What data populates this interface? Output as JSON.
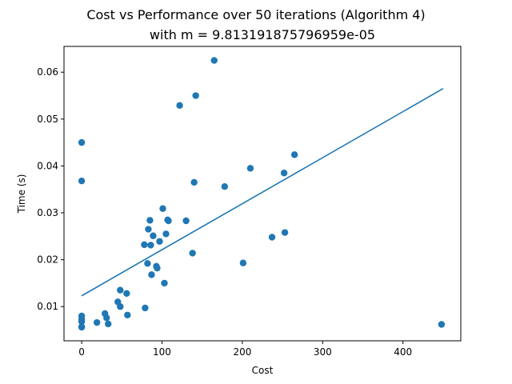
{
  "chart_data": {
    "type": "scatter",
    "title": "Cost vs Performance over 50 iterations (Algorithm 4)",
    "subtitle": "with m = 9.813191875796959e-05",
    "xlabel": "Cost",
    "ylabel": "Time (s)",
    "xlim": [
      -22,
      472
    ],
    "ylim": [
      0.0027,
      0.0655
    ],
    "xticks": [
      0,
      100,
      200,
      300,
      400
    ],
    "xtick_labels": [
      "0",
      "100",
      "200",
      "300",
      "400"
    ],
    "yticks": [
      0.01,
      0.02,
      0.03,
      0.04,
      0.05,
      0.06
    ],
    "ytick_labels": [
      "0.01",
      "0.02",
      "0.03",
      "0.04",
      "0.05",
      "0.06"
    ],
    "grid": false,
    "colors": {
      "points": "#1f77b4",
      "fit_line": "#1f77b4"
    },
    "series": [
      {
        "kind": "points",
        "x": [
          0,
          0,
          0,
          0,
          0,
          0,
          0,
          19,
          29,
          31,
          33,
          45,
          48,
          48,
          56,
          57,
          78,
          79,
          82,
          83,
          85,
          86,
          87,
          89,
          93,
          94,
          97,
          101,
          103,
          105,
          107,
          108,
          122,
          130,
          138,
          140,
          142,
          165,
          178,
          201,
          210,
          237,
          252,
          253,
          265,
          448
        ],
        "y": [
          0.045,
          0.0368,
          0.008,
          0.0073,
          0.0068,
          0.0057,
          0.0056,
          0.0066,
          0.0085,
          0.0076,
          0.0063,
          0.011,
          0.0135,
          0.01,
          0.0128,
          0.0082,
          0.0232,
          0.0097,
          0.0192,
          0.0265,
          0.0284,
          0.0231,
          0.0168,
          0.0251,
          0.0186,
          0.0182,
          0.0239,
          0.0309,
          0.015,
          0.0255,
          0.0285,
          0.0283,
          0.0529,
          0.0283,
          0.0214,
          0.0365,
          0.055,
          0.0625,
          0.0356,
          0.0193,
          0.0395,
          0.0248,
          0.0385,
          0.0258,
          0.0424,
          0.0062
        ]
      },
      {
        "kind": "fit_line",
        "x": [
          0,
          450
        ],
        "y": [
          0.0123,
          0.0565
        ]
      }
    ]
  }
}
